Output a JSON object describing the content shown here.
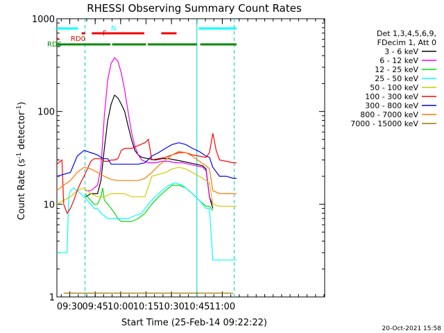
{
  "chart_data": {
    "type": "line",
    "title": "RHESSI Observing Summary Count Rates",
    "xlabel": "Start Time (25-Feb-14 09:22:22)",
    "ylabel_parts": [
      "Count Rate (s",
      "-1",
      " detector",
      "-1",
      ")"
    ],
    "yscale": "log",
    "xlim_minutes": [
      0,
      158
    ],
    "ylim": [
      1,
      1000
    ],
    "x_ticks": [
      {
        "label": "09:30",
        "min": 7.6
      },
      {
        "label": "09:45",
        "min": 22.6
      },
      {
        "label": "10:00",
        "min": 37.6
      },
      {
        "label": "10:15",
        "min": 52.6
      },
      {
        "label": "10:30",
        "min": 67.6
      },
      {
        "label": "10:45",
        "min": 82.6
      },
      {
        "label": "11:00",
        "min": 97.6
      }
    ],
    "y_ticks": [
      {
        "label": "1",
        "value": 1
      },
      {
        "label": "10",
        "value": 10
      },
      {
        "label": "100",
        "value": 100
      },
      {
        "label": "1000",
        "value": 1000
      }
    ],
    "legend_header": [
      "Det 1,3,4,5,6,9,",
      "FDecim 1, Att 0"
    ],
    "series": [
      {
        "name": "3 - 6 keV",
        "color": "#000000",
        "points": [
          [
            17,
            12
          ],
          [
            20,
            13
          ],
          [
            24,
            13
          ],
          [
            26,
            18
          ],
          [
            28,
            40
          ],
          [
            30,
            80
          ],
          [
            32,
            120
          ],
          [
            34,
            150
          ],
          [
            36,
            140
          ],
          [
            38,
            120
          ],
          [
            40,
            100
          ],
          [
            42,
            70
          ],
          [
            44,
            50
          ],
          [
            46,
            38
          ],
          [
            48,
            34
          ],
          [
            50,
            32
          ],
          [
            54,
            31
          ],
          [
            58,
            30
          ],
          [
            62,
            31
          ],
          [
            66,
            31
          ],
          [
            70,
            30
          ],
          [
            74,
            29
          ],
          [
            78,
            28
          ],
          [
            82,
            27
          ],
          [
            86,
            26
          ],
          [
            88,
            24
          ],
          [
            90,
            12
          ],
          [
            92,
            9
          ]
        ]
      },
      {
        "name": "6 - 12 keV",
        "color": "#ee00ee",
        "points": [
          [
            17,
            14
          ],
          [
            20,
            14
          ],
          [
            24,
            16
          ],
          [
            26,
            25
          ],
          [
            28,
            90
          ],
          [
            30,
            220
          ],
          [
            32,
            330
          ],
          [
            34,
            380
          ],
          [
            36,
            350
          ],
          [
            38,
            260
          ],
          [
            40,
            170
          ],
          [
            42,
            100
          ],
          [
            44,
            60
          ],
          [
            46,
            42
          ],
          [
            48,
            34
          ],
          [
            50,
            30
          ],
          [
            54,
            28
          ],
          [
            58,
            28
          ],
          [
            62,
            29
          ],
          [
            66,
            29
          ],
          [
            70,
            28
          ],
          [
            74,
            28
          ],
          [
            78,
            27
          ],
          [
            82,
            26
          ],
          [
            86,
            25
          ],
          [
            88,
            23
          ],
          [
            90,
            12
          ],
          [
            92,
            10
          ]
        ]
      },
      {
        "name": "12 - 25 keV",
        "color": "#00dd00",
        "points": [
          [
            17,
            13
          ],
          [
            18,
            12
          ],
          [
            20,
            11
          ],
          [
            22,
            10
          ],
          [
            24,
            10
          ],
          [
            26,
            12
          ],
          [
            27,
            15
          ],
          [
            28,
            11
          ],
          [
            30,
            10
          ],
          [
            32,
            9
          ],
          [
            34,
            8
          ],
          [
            36,
            7
          ],
          [
            38,
            6.5
          ],
          [
            40,
            6.5
          ],
          [
            44,
            6.5
          ],
          [
            48,
            7
          ],
          [
            52,
            8
          ],
          [
            56,
            10
          ],
          [
            60,
            12
          ],
          [
            64,
            14
          ],
          [
            68,
            16
          ],
          [
            72,
            16
          ],
          [
            76,
            15
          ],
          [
            80,
            13
          ],
          [
            84,
            11
          ],
          [
            88,
            9.5
          ],
          [
            90,
            9.5
          ],
          [
            92,
            8.5
          ]
        ]
      },
      {
        "name": "25 - 50 keV",
        "color": "#00ffff",
        "points": [
          [
            0,
            3
          ],
          [
            4,
            3
          ],
          [
            6,
            3
          ],
          [
            7,
            12
          ],
          [
            8,
            14
          ],
          [
            10,
            15
          ],
          [
            12,
            14
          ],
          [
            14,
            13
          ],
          [
            16,
            12
          ],
          [
            18,
            11
          ],
          [
            20,
            10
          ],
          [
            22,
            9
          ],
          [
            24,
            9
          ],
          [
            26,
            8
          ],
          [
            28,
            7.5
          ],
          [
            30,
            7
          ],
          [
            34,
            7
          ],
          [
            38,
            7
          ],
          [
            42,
            7
          ],
          [
            46,
            7.5
          ],
          [
            50,
            8
          ],
          [
            54,
            10
          ],
          [
            58,
            12
          ],
          [
            62,
            14
          ],
          [
            66,
            16
          ],
          [
            70,
            17
          ],
          [
            74,
            16
          ],
          [
            78,
            14
          ],
          [
            82,
            12
          ],
          [
            86,
            10
          ],
          [
            88,
            9
          ],
          [
            90,
            9
          ],
          [
            92,
            2.5
          ],
          [
            96,
            2.5
          ],
          [
            100,
            2.5
          ],
          [
            104,
            2.5
          ],
          [
            106,
            2.5
          ]
        ]
      },
      {
        "name": "50 - 100 keV",
        "color": "#cccc00",
        "points": [
          [
            0,
            10
          ],
          [
            4,
            11
          ],
          [
            8,
            12
          ],
          [
            12,
            14
          ],
          [
            16,
            15
          ],
          [
            20,
            13
          ],
          [
            24,
            12
          ],
          [
            28,
            12
          ],
          [
            32,
            13
          ],
          [
            36,
            13
          ],
          [
            40,
            13
          ],
          [
            44,
            12
          ],
          [
            48,
            12
          ],
          [
            52,
            12
          ],
          [
            56,
            20
          ],
          [
            60,
            21
          ],
          [
            64,
            22
          ],
          [
            68,
            24
          ],
          [
            72,
            25
          ],
          [
            76,
            24
          ],
          [
            80,
            22
          ],
          [
            84,
            20
          ],
          [
            88,
            18
          ],
          [
            90,
            17
          ],
          [
            92,
            10
          ],
          [
            96,
            9.5
          ],
          [
            100,
            9.5
          ],
          [
            104,
            9.5
          ],
          [
            106,
            9.5
          ]
        ]
      },
      {
        "name": "100 - 300 keV",
        "color": "#ff0000",
        "points": [
          [
            0,
            27
          ],
          [
            1,
            28
          ],
          [
            3,
            30
          ],
          [
            4,
            10
          ],
          [
            6,
            8
          ],
          [
            8,
            9
          ],
          [
            10,
            11
          ],
          [
            12,
            14
          ],
          [
            14,
            17
          ],
          [
            16,
            20
          ],
          [
            18,
            24
          ],
          [
            20,
            29
          ],
          [
            22,
            31
          ],
          [
            24,
            31
          ],
          [
            26,
            31
          ],
          [
            28,
            29
          ],
          [
            30,
            29
          ],
          [
            32,
            30
          ],
          [
            34,
            30
          ],
          [
            36,
            31
          ],
          [
            38,
            38
          ],
          [
            40,
            40
          ],
          [
            44,
            40
          ],
          [
            48,
            43
          ],
          [
            52,
            46
          ],
          [
            54,
            50
          ],
          [
            56,
            30
          ],
          [
            60,
            31
          ],
          [
            64,
            32
          ],
          [
            68,
            34
          ],
          [
            72,
            36
          ],
          [
            76,
            36
          ],
          [
            80,
            34
          ],
          [
            84,
            33
          ],
          [
            88,
            32
          ],
          [
            90,
            36
          ],
          [
            92,
            58
          ],
          [
            94,
            38
          ],
          [
            96,
            30
          ],
          [
            100,
            29
          ],
          [
            104,
            28
          ],
          [
            106,
            28
          ]
        ]
      },
      {
        "name": "300 - 800 keV",
        "color": "#0000ee",
        "points": [
          [
            0,
            20
          ],
          [
            4,
            21
          ],
          [
            8,
            22
          ],
          [
            12,
            33
          ],
          [
            16,
            38
          ],
          [
            20,
            36
          ],
          [
            24,
            34
          ],
          [
            26,
            32
          ],
          [
            28,
            31
          ],
          [
            30,
            31
          ],
          [
            32,
            27
          ],
          [
            36,
            27
          ],
          [
            40,
            27
          ],
          [
            44,
            27
          ],
          [
            48,
            27
          ],
          [
            52,
            28
          ],
          [
            56,
            33
          ],
          [
            60,
            36
          ],
          [
            64,
            40
          ],
          [
            68,
            44
          ],
          [
            72,
            46
          ],
          [
            76,
            44
          ],
          [
            80,
            40
          ],
          [
            84,
            37
          ],
          [
            88,
            33
          ],
          [
            90,
            32
          ],
          [
            92,
            25
          ],
          [
            96,
            20
          ],
          [
            100,
            20
          ],
          [
            104,
            19
          ],
          [
            106,
            19
          ]
        ]
      },
      {
        "name": "800 - 7000 keV",
        "color": "#ff7700",
        "points": [
          [
            0,
            14
          ],
          [
            4,
            16
          ],
          [
            8,
            18
          ],
          [
            12,
            22
          ],
          [
            16,
            25
          ],
          [
            20,
            24
          ],
          [
            24,
            22
          ],
          [
            28,
            20
          ],
          [
            32,
            18.5
          ],
          [
            36,
            18
          ],
          [
            40,
            18
          ],
          [
            44,
            18
          ],
          [
            48,
            18
          ],
          [
            52,
            19
          ],
          [
            56,
            22
          ],
          [
            60,
            26
          ],
          [
            64,
            30
          ],
          [
            68,
            34
          ],
          [
            72,
            37
          ],
          [
            76,
            36
          ],
          [
            80,
            33
          ],
          [
            84,
            29
          ],
          [
            88,
            26
          ],
          [
            90,
            24
          ],
          [
            92,
            14
          ],
          [
            96,
            13
          ],
          [
            100,
            13
          ],
          [
            104,
            13
          ],
          [
            106,
            13
          ]
        ]
      },
      {
        "name": "7000 - 15000 keV",
        "color": "#997700",
        "points": [
          [
            4,
            1.1
          ],
          [
            8,
            1.1
          ],
          [
            12,
            1.1
          ],
          [
            16,
            1.1
          ],
          [
            20,
            1.1
          ],
          [
            24,
            1.1
          ],
          [
            28,
            1.1
          ],
          [
            32,
            1.1
          ],
          [
            36,
            1.1
          ],
          [
            40,
            1.1
          ],
          [
            44,
            1.1
          ],
          [
            48,
            1.1
          ],
          [
            52,
            1.1
          ],
          [
            56,
            1.1
          ],
          [
            60,
            1.1
          ],
          [
            64,
            1.1
          ],
          [
            68,
            1.1
          ],
          [
            72,
            1.1
          ],
          [
            76,
            1.1
          ],
          [
            80,
            1.1
          ],
          [
            84,
            1.1
          ],
          [
            88,
            1.1
          ],
          [
            92,
            1.1
          ],
          [
            96,
            1.1
          ],
          [
            100,
            1.1
          ],
          [
            104,
            1.1
          ]
        ]
      }
    ],
    "flag_bars": [
      {
        "label": "N",
        "color": "#00ffff",
        "segments": [
          [
            0,
            12.6
          ],
          [
            83.6,
            106
          ]
        ]
      },
      {
        "label": "F",
        "color": "#ee0000",
        "segments": [
          [
            14.6,
            16.6
          ],
          [
            20.6,
            51.6
          ],
          [
            61.6,
            70.6
          ]
        ]
      },
      {
        "label": "RD0",
        "color": "#ee0000",
        "segments": [
          [
            0,
            1
          ]
        ]
      },
      {
        "label": "RD6",
        "color": "#008800",
        "segments": [
          [
            0,
            14.6
          ],
          [
            14.6,
            31.6
          ],
          [
            32.6,
            52.6
          ],
          [
            53.6,
            82.6
          ],
          [
            84.6,
            106
          ]
        ]
      }
    ],
    "vertical_markers": [
      {
        "min": 16.6,
        "color": "#00cccc",
        "style": "dashed"
      },
      {
        "min": 82.6,
        "color": "#00cccc",
        "style": "solid"
      },
      {
        "min": 104.6,
        "color": "#00cccc",
        "style": "dashed"
      }
    ]
  },
  "footer": {
    "date_stamp": "20-Oct-2021 15:58"
  }
}
